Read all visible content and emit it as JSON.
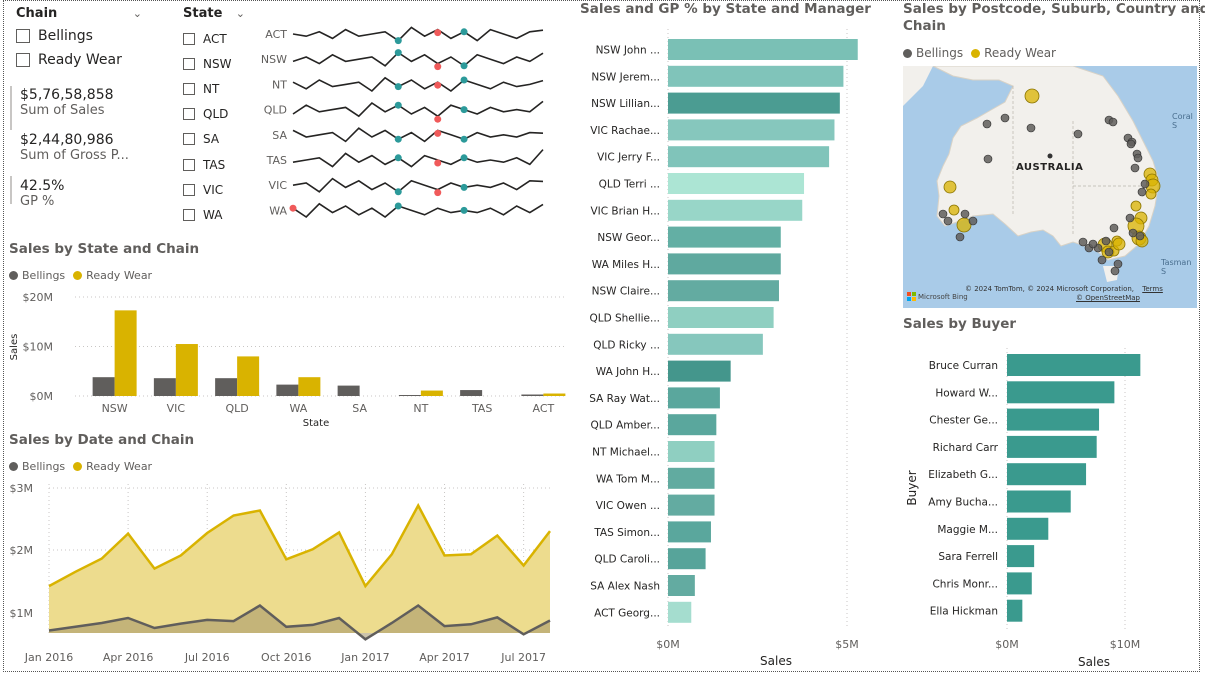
{
  "colors": {
    "bellings": "#605e5c",
    "ready_wear": "#d9b300",
    "ready_wear_fill": "#eddc8e",
    "teal": "#3a9a8e",
    "map_water": "#a9cbe8",
    "map_land": "#f2f0ec"
  },
  "chain_slicer": {
    "title": "Chain",
    "items": [
      "Bellings",
      "Ready Wear"
    ]
  },
  "state_slicer": {
    "title": "State",
    "items": [
      "ACT",
      "NSW",
      "NT",
      "QLD",
      "SA",
      "TAS",
      "VIC",
      "WA"
    ]
  },
  "sparklines": {
    "labels": [
      "ACT",
      "NSW",
      "NT",
      "QLD",
      "SA",
      "TAS",
      "VIC",
      "WA"
    ]
  },
  "kpis": [
    {
      "value": "$5,76,58,858",
      "label": "Sum of Sales"
    },
    {
      "value": "$2,44,80,986",
      "label": "Sum of Gross P..."
    },
    {
      "value": "42.5%",
      "label": "GP %"
    }
  ],
  "state_chain_chart": {
    "title": "Sales by State and Chain",
    "legend": [
      "Bellings",
      "Ready Wear"
    ],
    "chart_data": {
      "type": "bar",
      "categories": [
        "NSW",
        "VIC",
        "QLD",
        "WA",
        "SA",
        "NT",
        "TAS",
        "ACT"
      ],
      "series": [
        {
          "name": "Bellings",
          "values": [
            3.8,
            3.6,
            3.6,
            2.3,
            2.1,
            0.2,
            1.2,
            0.3
          ]
        },
        {
          "name": "Ready Wear",
          "values": [
            17.3,
            10.5,
            8.0,
            3.8,
            0,
            1.1,
            0,
            0.5
          ]
        }
      ],
      "yticks": [
        "$0M",
        "$10M",
        "$20M"
      ],
      "ylim": [
        0,
        20
      ],
      "xlabel": "State",
      "ylabel": "Sales"
    }
  },
  "date_chain_chart": {
    "title": "Sales by Date and Chain",
    "legend": [
      "Bellings",
      "Ready Wear"
    ],
    "chart_data": {
      "type": "area",
      "x": [
        "Jan 2016",
        "Feb 2016",
        "Mar 2016",
        "Apr 2016",
        "May 2016",
        "Jun 2016",
        "Jul 2016",
        "Aug 2016",
        "Sep 2016",
        "Oct 2016",
        "Nov 2016",
        "Dec 2016",
        "Jan 2017",
        "Feb 2017",
        "Mar 2017",
        "Apr 2017",
        "May 2017",
        "Jun 2017",
        "Jul 2017",
        "Aug 2017"
      ],
      "series": [
        {
          "name": "Ready Wear",
          "values": [
            1.43,
            1.66,
            1.87,
            2.27,
            1.71,
            1.92,
            2.28,
            2.56,
            2.64,
            1.86,
            2.02,
            2.29,
            1.43,
            1.94,
            2.72,
            1.92,
            1.94,
            2.24,
            1.76,
            2.31
          ]
        },
        {
          "name": "Bellings",
          "values": [
            0.72,
            0.78,
            0.84,
            0.92,
            0.76,
            0.83,
            0.89,
            0.87,
            1.12,
            0.78,
            0.81,
            0.92,
            0.58,
            0.84,
            1.12,
            0.79,
            0.82,
            0.93,
            0.66,
            0.88
          ]
        }
      ],
      "xticks": [
        "Jan 2016",
        "Apr 2016",
        "Jul 2016",
        "Oct 2016",
        "Jan 2017",
        "Apr 2017",
        "Jul 2017"
      ],
      "yticks": [
        "$1M",
        "$2M",
        "$3M"
      ],
      "ylim": [
        0.65,
        3.0
      ]
    }
  },
  "manager_chart": {
    "title": "Sales and GP % by State and Manager",
    "chart_data": {
      "type": "bar",
      "categories": [
        "NSW John ...",
        "NSW Jerem...",
        "NSW Lillian...",
        "VIC Rachae...",
        "VIC Jerry F...",
        "QLD Terri ...",
        "VIC Brian H...",
        "NSW Geor...",
        "WA Miles H...",
        "NSW Claire...",
        "QLD Shellie...",
        "QLD Ricky ...",
        "WA John H...",
        "SA Ray Wat...",
        "QLD Amber...",
        "NT Michael...",
        "WA Tom M...",
        "VIC Owen ...",
        "TAS Simon...",
        "QLD Caroli...",
        "SA Alex Nash",
        "ACT Georg..."
      ],
      "values": [
        5.3,
        4.9,
        4.8,
        4.65,
        4.5,
        3.8,
        3.75,
        3.15,
        3.15,
        3.1,
        2.95,
        2.65,
        1.75,
        1.45,
        1.35,
        1.3,
        1.3,
        1.3,
        1.2,
        1.05,
        0.75,
        0.65
      ],
      "shades": [
        "#7ac0b5",
        "#80c4ba",
        "#4b9c92",
        "#86c7bd",
        "#80c4ba",
        "#ace5d4",
        "#98d6c8",
        "#63afa4",
        "#5fa99f",
        "#63aba1",
        "#8fcfc1",
        "#86c7bd",
        "#44968c",
        "#5aa79d",
        "#5aa79d",
        "#8fcfc1",
        "#61aba0",
        "#63aba1",
        "#5aa79d",
        "#57a49a",
        "#63aba1",
        "#a5ddcf"
      ],
      "xticks": [
        "$0M",
        "$5M"
      ],
      "xlim": [
        0,
        5.5
      ],
      "xlabel": "Sales"
    }
  },
  "map": {
    "title_line1": "Sales by Postcode, Suburb, Country and",
    "title_line2": "Chain",
    "legend": [
      "Bellings",
      "Ready Wear"
    ],
    "country_label": "AUSTRALIA",
    "sea_labels": [
      "Coral S",
      "Tasman S"
    ],
    "attribution": "© 2024 TomTom, © 2024 Microsoft Corporation,",
    "terms": "Terms",
    "osm": "© OpenStreetMap",
    "brand": "Microsoft Bing"
  },
  "buyer_chart": {
    "title": "Sales by Buyer",
    "chart_data": {
      "type": "bar",
      "categories": [
        "Bruce Curran",
        "Howard W...",
        "Chester Ge...",
        "Richard Carr",
        "Elizabeth G...",
        "Amy Bucha...",
        "Maggie M...",
        "Sara Ferrell",
        "Chris Monr...",
        "Ella Hickman"
      ],
      "values": [
        11.3,
        9.1,
        7.8,
        7.6,
        6.7,
        5.4,
        3.5,
        2.3,
        2.1,
        1.3
      ],
      "xticks": [
        "$0M",
        "$10M"
      ],
      "xlim": [
        0,
        13
      ],
      "xlabel": "Sales",
      "ylabel": "Buyer"
    }
  }
}
